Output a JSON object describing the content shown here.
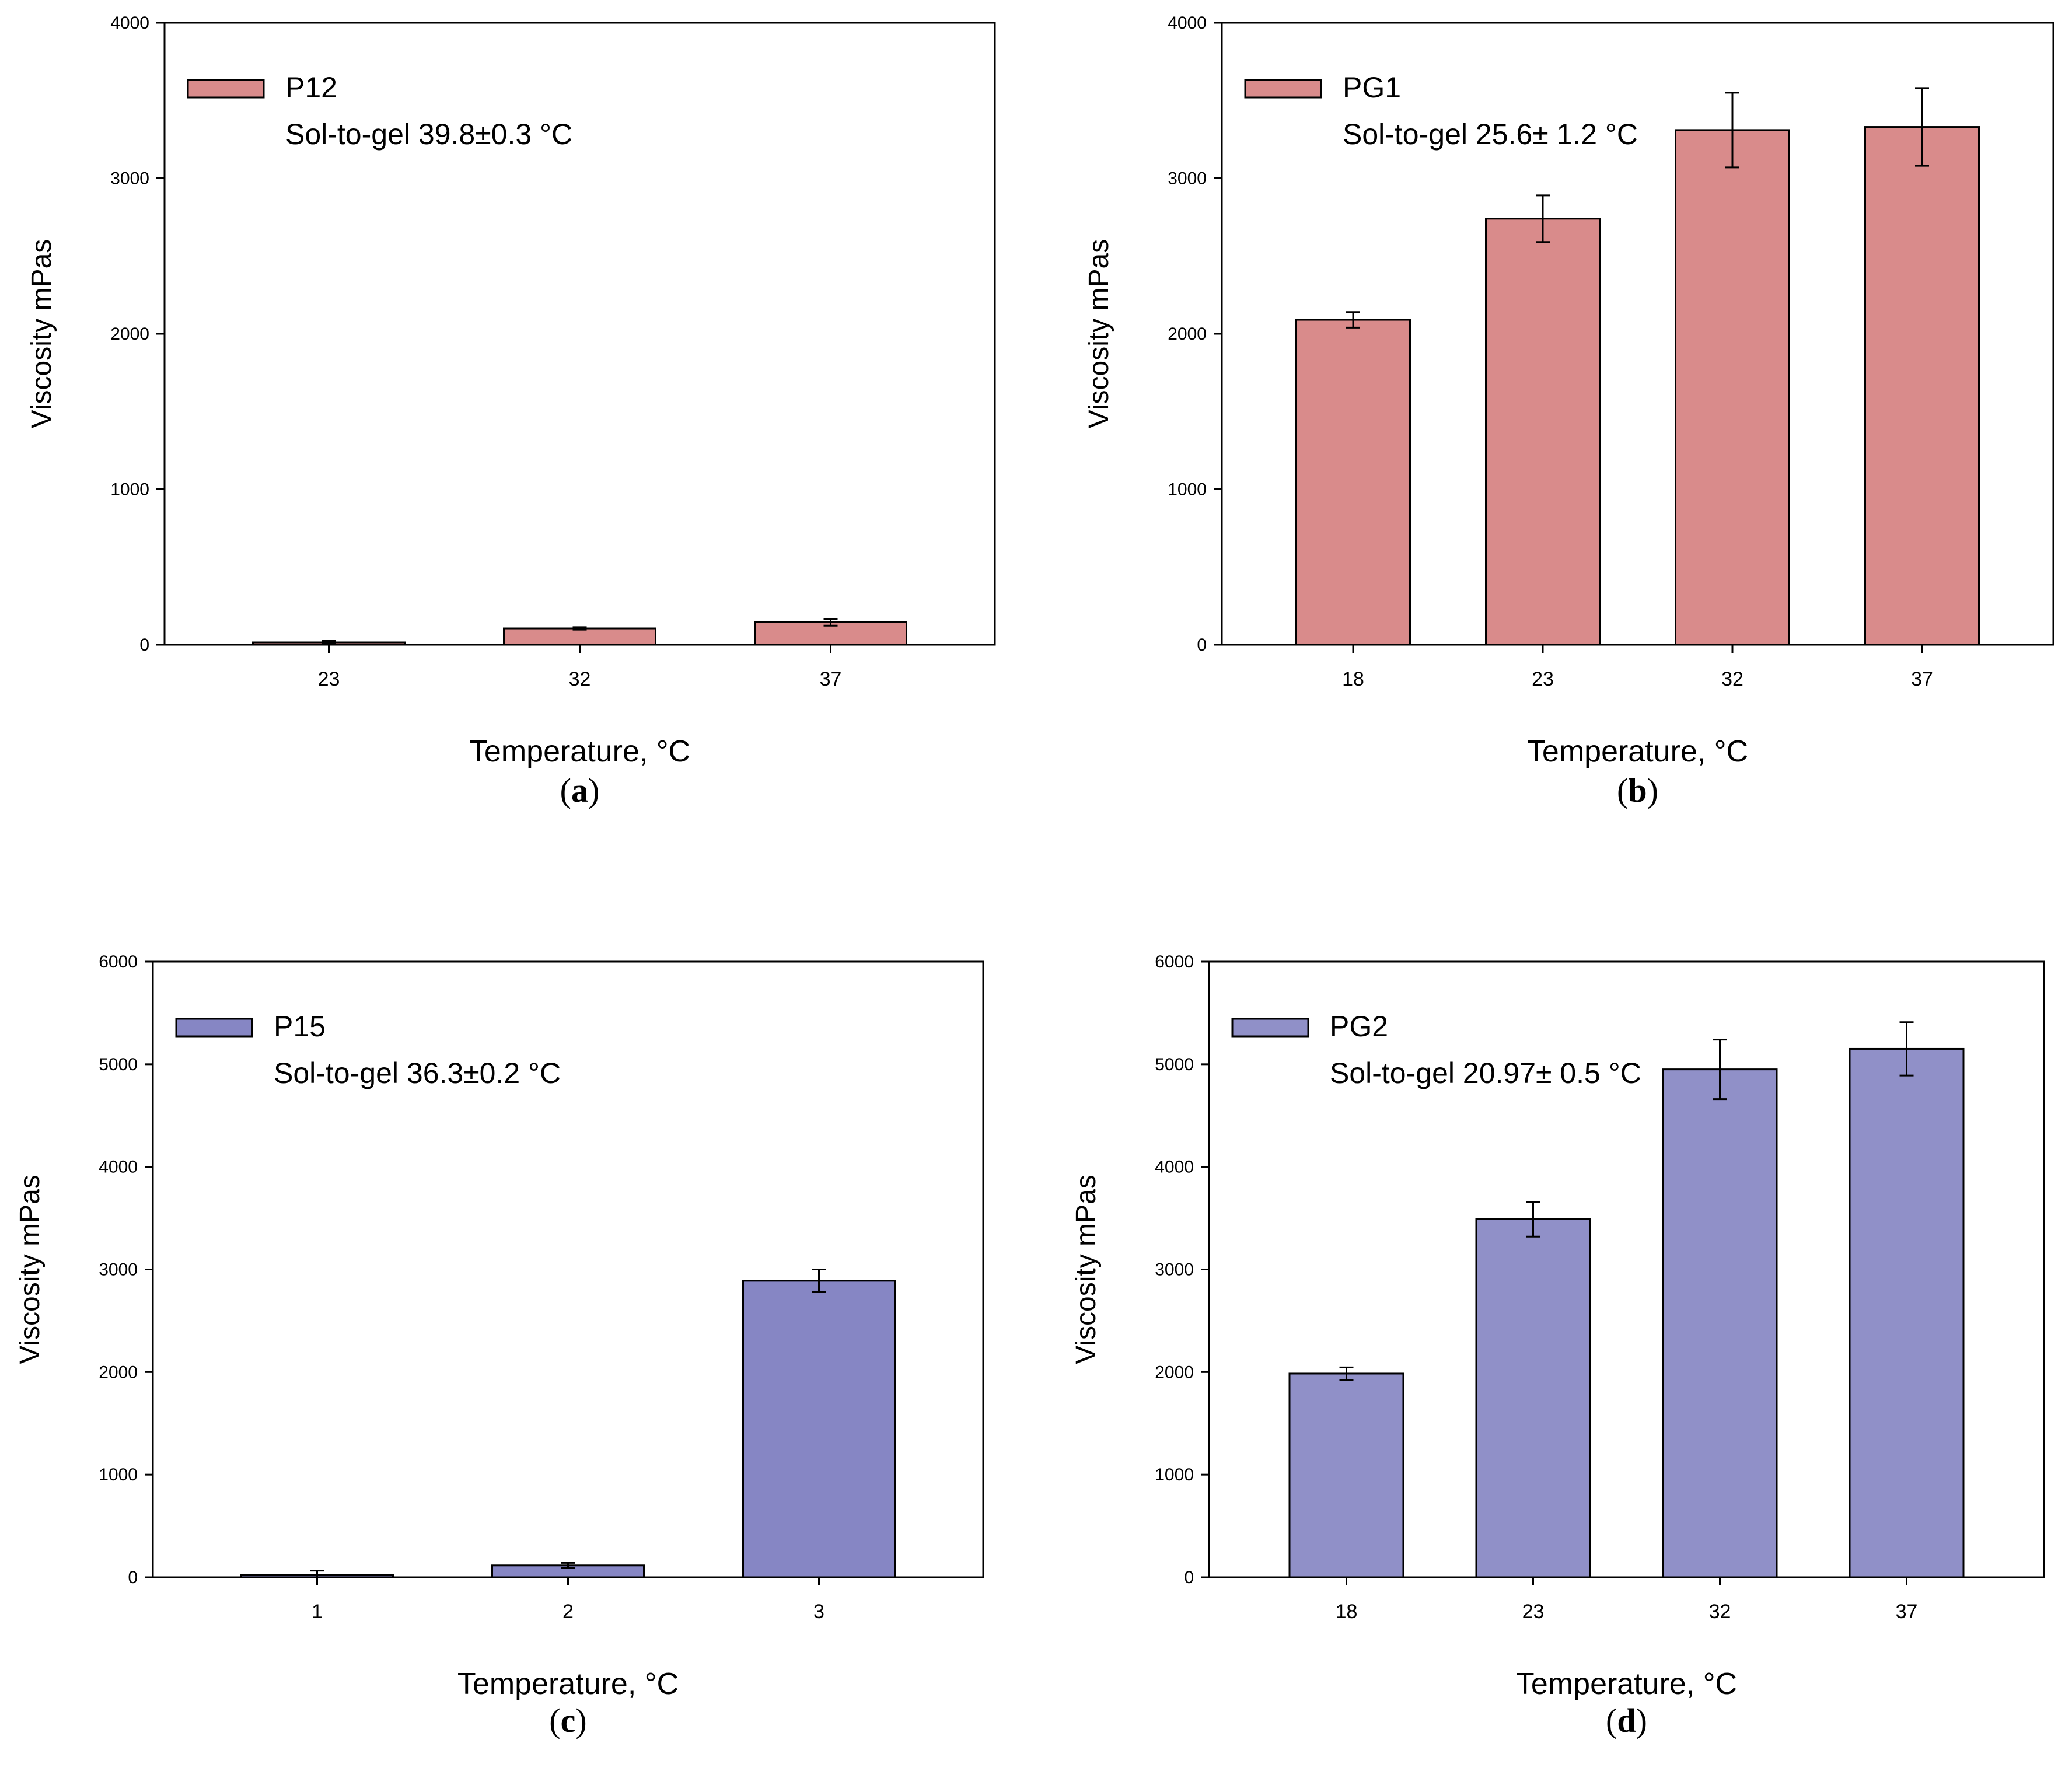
{
  "figure": {
    "colors": {
      "bar_red": "#d98b8b",
      "bar_blue": "#8686c4",
      "bar_blue_light": "#9090c8",
      "stroke": "#000000",
      "background": "#ffffff"
    }
  },
  "chart_data": [
    {
      "type": "bar",
      "panel_label": "a",
      "legend_label": "P12",
      "annotation": "Sol-to-gel 39.8±0.3 °C",
      "xlabel": "Temperature, °C",
      "ylabel": "Viscosity mPas",
      "categories": [
        "23",
        "32",
        "37"
      ],
      "values": [
        15,
        105,
        145
      ],
      "errors": [
        10,
        8,
        22
      ],
      "ylim": [
        0,
        4000
      ],
      "yticks": [
        0,
        1000,
        2000,
        3000,
        4000
      ],
      "color": "#d98b8b",
      "legend_position": "top-left"
    },
    {
      "type": "bar",
      "panel_label": "b",
      "legend_label": "PG1",
      "annotation": "Sol-to-gel 25.6± 1.2 °C",
      "xlabel": "Temperature, °C",
      "ylabel": "Viscosity mPas",
      "categories": [
        "18",
        "23",
        "32",
        "37"
      ],
      "values": [
        2090,
        2740,
        3310,
        3330
      ],
      "errors": [
        50,
        150,
        240,
        250
      ],
      "ylim": [
        0,
        4000
      ],
      "yticks": [
        0,
        1000,
        2000,
        3000,
        4000
      ],
      "color": "#d98b8b",
      "legend_position": "top-left"
    },
    {
      "type": "bar",
      "panel_label": "c",
      "legend_label": "P15",
      "annotation": "Sol-to-gel 36.3±0.2 °C",
      "xlabel": "Temperature, °C",
      "ylabel": "Viscosity mPas",
      "categories": [
        "1",
        "2",
        "3"
      ],
      "values": [
        20,
        115,
        2890
      ],
      "errors": [
        45,
        25,
        110
      ],
      "ylim": [
        0,
        6000
      ],
      "yticks": [
        0,
        1000,
        2000,
        3000,
        4000,
        5000,
        6000
      ],
      "color": "#8686c4",
      "legend_position": "top-left"
    },
    {
      "type": "bar",
      "panel_label": "d",
      "legend_label": "PG2",
      "annotation": "Sol-to-gel 20.97± 0.5 °C",
      "xlabel": "Temperature, °C",
      "ylabel": "Viscosity mPas",
      "categories": [
        "18",
        "23",
        "32",
        "37"
      ],
      "values": [
        1985,
        3490,
        4950,
        5150
      ],
      "errors": [
        60,
        170,
        290,
        260
      ],
      "ylim": [
        0,
        6000
      ],
      "yticks": [
        0,
        1000,
        2000,
        3000,
        4000,
        5000,
        6000
      ],
      "color": "#9090c8",
      "legend_position": "top-left"
    }
  ]
}
